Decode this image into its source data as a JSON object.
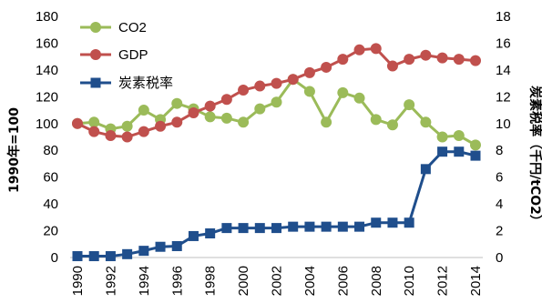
{
  "chart_data": {
    "type": "line",
    "x": [
      1990,
      1991,
      1992,
      1993,
      1994,
      1995,
      1996,
      1997,
      1998,
      1999,
      2000,
      2001,
      2002,
      2003,
      2004,
      2005,
      2006,
      2007,
      2008,
      2009,
      2010,
      2011,
      2012,
      2013,
      2014
    ],
    "x_tick_labels": [
      "1990",
      "1992",
      "1994",
      "1996",
      "1998",
      "2000",
      "2002",
      "2004",
      "2006",
      "2008",
      "2010",
      "2012",
      "2014"
    ],
    "ylabel_left": "1990年=100",
    "ylabel_right": "炭素税率（千円/tCO2）",
    "ylim_left": [
      0,
      180
    ],
    "ylim_right": [
      0,
      18
    ],
    "y_ticks_left": [
      "0",
      "20",
      "40",
      "60",
      "80",
      "100",
      "120",
      "140",
      "160",
      "180"
    ],
    "y_ticks_right": [
      "0",
      "2",
      "4",
      "6",
      "8",
      "10",
      "12",
      "14",
      "16",
      "18"
    ],
    "grid": false,
    "legend_position": "top-left",
    "series": [
      {
        "name": "CO2",
        "axis": "left",
        "color": "#9BBB59",
        "marker": "circle",
        "values": [
          100,
          101,
          96,
          98,
          110,
          103,
          115,
          111,
          105,
          104,
          101,
          111,
          116,
          133,
          124,
          101,
          123,
          119,
          103,
          99,
          114,
          101,
          90,
          91,
          84
        ]
      },
      {
        "name": "GDP",
        "axis": "left",
        "color": "#C0504D",
        "marker": "circle",
        "values": [
          100,
          94,
          91,
          90,
          94,
          98,
          101,
          108,
          113,
          118,
          125,
          128,
          130,
          133,
          138,
          142,
          148,
          155,
          156,
          143,
          148,
          151,
          149,
          148,
          147
        ]
      },
      {
        "name": "炭素税率",
        "axis": "right",
        "color": "#1F4E8C",
        "marker": "square",
        "values": [
          0.1,
          0.1,
          0.1,
          0.25,
          0.5,
          0.8,
          0.85,
          1.6,
          1.8,
          2.2,
          2.2,
          2.2,
          2.2,
          2.3,
          2.3,
          2.3,
          2.3,
          2.3,
          2.6,
          2.6,
          2.6,
          6.6,
          7.9,
          7.9,
          7.6
        ]
      }
    ]
  }
}
